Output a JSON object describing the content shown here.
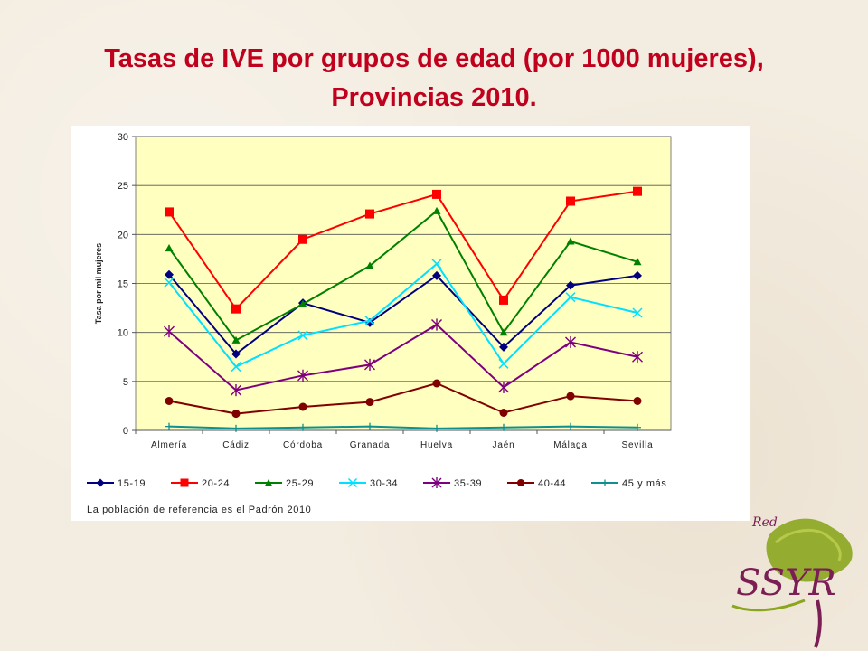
{
  "slide": {
    "title_line1": "Tasas de IVE por grupos de edad  (por 1000 mujeres),",
    "title_line2": "Provincias 2010."
  },
  "chart_data": {
    "type": "line",
    "title": "Tasas de IVE por grupos de edad  (por 1000 mujeres), Provincias 2010.",
    "xlabel": "",
    "ylabel": "Tasa por mil mujeres",
    "ylim": [
      0,
      30
    ],
    "yticks": [
      0,
      5,
      10,
      15,
      20,
      25,
      30
    ],
    "grid": true,
    "legend_position": "bottom",
    "plot_background": "#ffffc0",
    "categories": [
      "Almería",
      "Cádiz",
      "Córdoba",
      "Granada",
      "Huelva",
      "Jaén",
      "Málaga",
      "Sevilla"
    ],
    "series": [
      {
        "name": "15-19",
        "color": "#000080",
        "marker": "diamond",
        "values": [
          15.9,
          7.8,
          13.0,
          11.0,
          15.8,
          8.5,
          14.8,
          15.8
        ]
      },
      {
        "name": "20-24",
        "color": "#ff0000",
        "marker": "square",
        "values": [
          22.3,
          12.4,
          19.5,
          22.1,
          24.1,
          13.3,
          23.4,
          24.4
        ]
      },
      {
        "name": "25-29",
        "color": "#008000",
        "marker": "triangle",
        "values": [
          18.6,
          9.2,
          12.9,
          16.8,
          22.4,
          10.0,
          19.3,
          17.2
        ]
      },
      {
        "name": "30-34",
        "color": "#00e0ff",
        "marker": "x",
        "values": [
          15.1,
          6.5,
          9.7,
          11.2,
          17.0,
          6.8,
          13.6,
          12.0
        ]
      },
      {
        "name": "35-39",
        "color": "#7f007f",
        "marker": "star",
        "values": [
          10.1,
          4.1,
          5.6,
          6.7,
          10.8,
          4.4,
          9.0,
          7.5
        ]
      },
      {
        "name": "40-44",
        "color": "#800000",
        "marker": "circle",
        "values": [
          3.0,
          1.7,
          2.4,
          2.9,
          4.8,
          1.8,
          3.5,
          3.0
        ]
      },
      {
        "name": "45 y más",
        "color": "#0f8f8f",
        "marker": "plus",
        "values": [
          0.4,
          0.2,
          0.3,
          0.4,
          0.2,
          0.3,
          0.4,
          0.3
        ]
      }
    ],
    "footnote": "La población de referencia es el Padrón 2010"
  },
  "logo": {
    "text_top": "Red",
    "text_main": "SSYR"
  }
}
